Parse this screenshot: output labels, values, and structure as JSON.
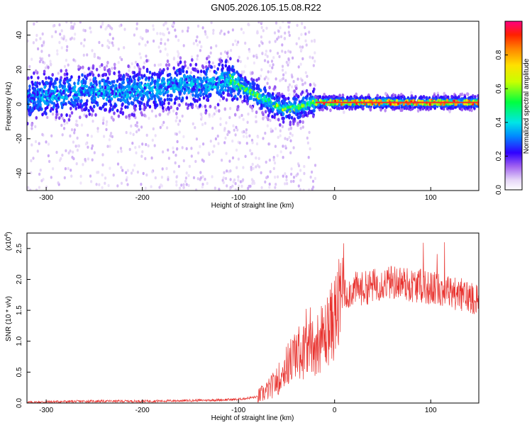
{
  "title": "GN05.2026.105.15.08.R22",
  "chart_data": [
    {
      "type": "heatmap",
      "title": "",
      "xlabel": "Height of straight line (km)",
      "ylabel": "Frequency (Hz)",
      "xlim": [
        -320,
        150
      ],
      "ylim": [
        -50,
        48
      ],
      "x_ticks": [
        -300,
        -200,
        -100,
        0,
        100
      ],
      "y_ticks": [
        -40,
        -20,
        0,
        20,
        40
      ],
      "frequency_trace": [
        {
          "x": -320,
          "y": 3
        },
        {
          "x": -300,
          "y": 5
        },
        {
          "x": -280,
          "y": 6
        },
        {
          "x": -260,
          "y": 8
        },
        {
          "x": -240,
          "y": 7
        },
        {
          "x": -220,
          "y": 7
        },
        {
          "x": -200,
          "y": 8
        },
        {
          "x": -180,
          "y": 9
        },
        {
          "x": -160,
          "y": 12
        },
        {
          "x": -140,
          "y": 10
        },
        {
          "x": -120,
          "y": 13
        },
        {
          "x": -110,
          "y": 14
        },
        {
          "x": -100,
          "y": 11
        },
        {
          "x": -90,
          "y": 8
        },
        {
          "x": -80,
          "y": 5
        },
        {
          "x": -70,
          "y": 2
        },
        {
          "x": -60,
          "y": -1
        },
        {
          "x": -50,
          "y": -3
        },
        {
          "x": -40,
          "y": -2
        },
        {
          "x": -30,
          "y": 0
        },
        {
          "x": -20,
          "y": 1
        },
        {
          "x": 0,
          "y": 1
        },
        {
          "x": 50,
          "y": 1
        },
        {
          "x": 100,
          "y": 1
        },
        {
          "x": 150,
          "y": 1
        }
      ],
      "colorbar": {
        "label": "Normalized spectral amplitude",
        "range": [
          0,
          1
        ],
        "ticks": [
          "0.0",
          "0.2",
          "0.4",
          "0.6",
          "0.8"
        ]
      }
    },
    {
      "type": "line",
      "title": "",
      "xlabel": "Height of straight line (km)",
      "ylabel": "SNR (10 * v/v)",
      "y_multiplier": "(x10",
      "y_exponent": "4",
      "xlim": [
        -320,
        150
      ],
      "ylim": [
        0,
        2.75
      ],
      "x_ticks": [
        -300,
        -200,
        -100,
        0,
        100
      ],
      "y_ticks": [
        "0.0",
        "0.5",
        "1.0",
        "1.5",
        "2.0",
        "2.5"
      ],
      "series": [
        {
          "color": "#e8322e",
          "x": [
            -320,
            -300,
            -250,
            -200,
            -150,
            -120,
            -100,
            -80,
            -70,
            -60,
            -50,
            -40,
            -30,
            -20,
            -10,
            0,
            10,
            20,
            30,
            40,
            50,
            60,
            70,
            80,
            90,
            100,
            110,
            120,
            130,
            140,
            150
          ],
          "y": [
            0.01,
            0.02,
            0.03,
            0.03,
            0.04,
            0.05,
            0.06,
            0.1,
            0.2,
            0.35,
            0.6,
            0.8,
            0.85,
            0.95,
            1.1,
            1.4,
            1.75,
            1.85,
            1.85,
            1.9,
            1.95,
            1.95,
            1.95,
            1.9,
            1.9,
            1.85,
            1.85,
            1.8,
            1.75,
            1.72,
            1.7
          ]
        }
      ]
    }
  ],
  "colors": {
    "line": "#e8322e",
    "heatmap_low": "#d9c7f3",
    "heatmap_mid": "#5a00e0"
  }
}
